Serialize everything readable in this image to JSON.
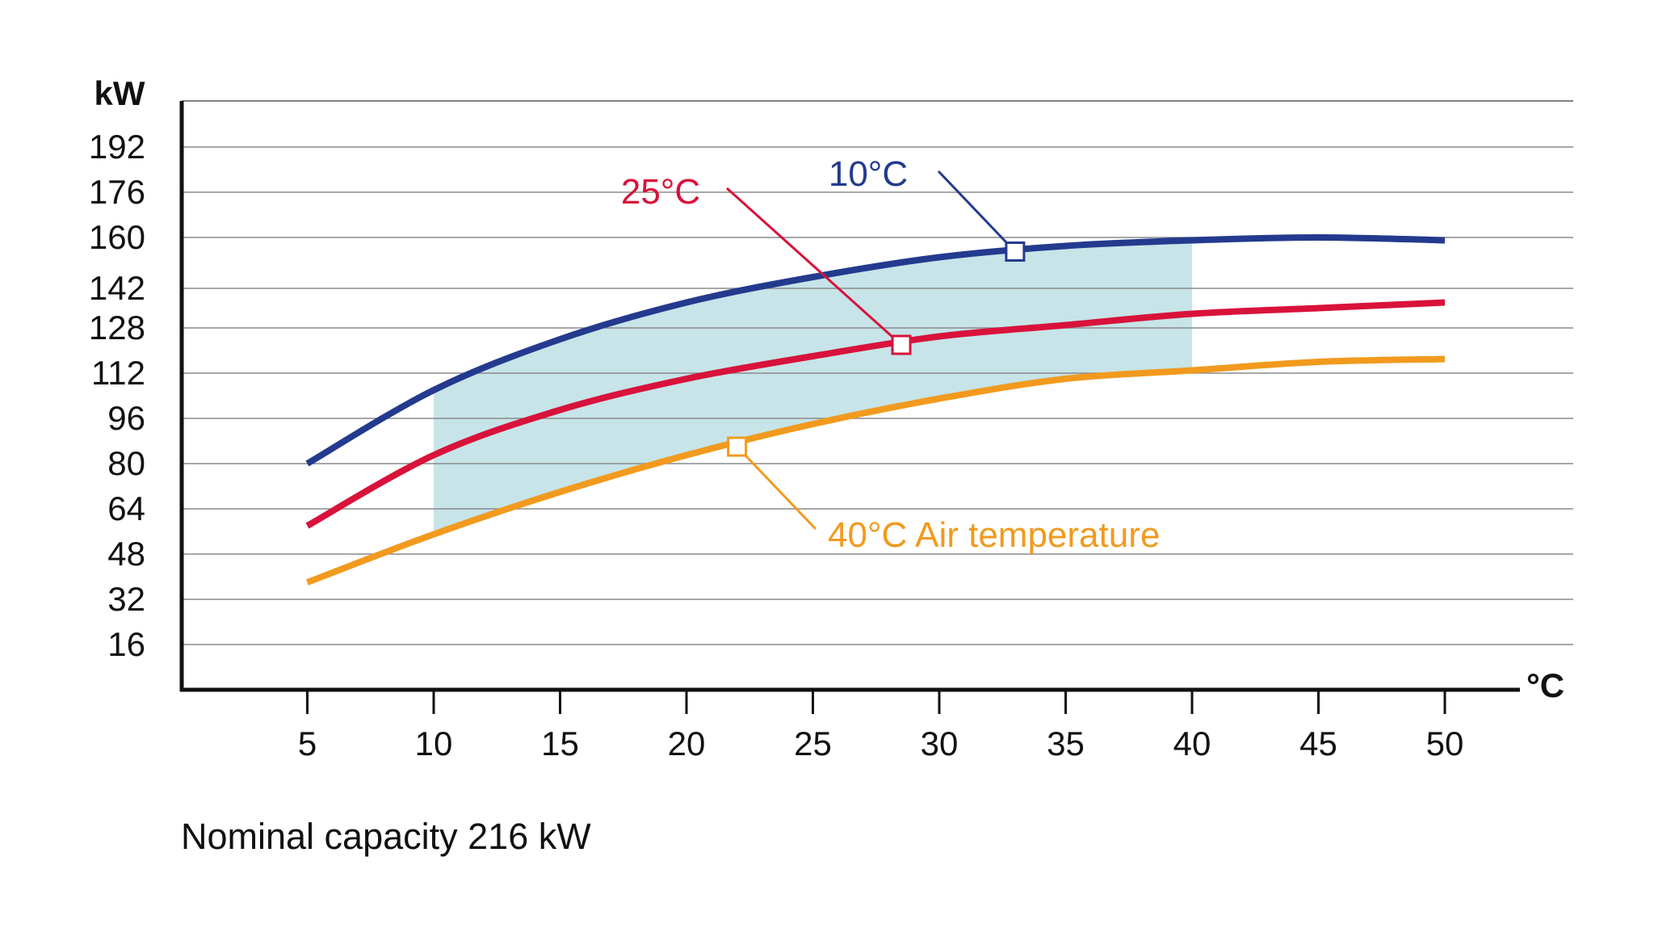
{
  "chart_data": {
    "type": "line",
    "title": "",
    "xlabel": "°C",
    "ylabel": "kW",
    "x_ticks": [
      5,
      10,
      15,
      20,
      25,
      30,
      35,
      40,
      45,
      50
    ],
    "y_ticks": [
      16,
      32,
      48,
      64,
      80,
      96,
      112,
      128,
      142,
      160,
      176,
      192
    ],
    "xlim": [
      0,
      55
    ],
    "ylim": [
      0,
      208
    ],
    "grid": "horizontal",
    "shaded_region": {
      "x_range": [
        10,
        40
      ],
      "color": "#c7e4e8"
    },
    "series": [
      {
        "name": "10°C",
        "color": "#233a8e",
        "x": [
          5,
          10,
          15,
          20,
          25,
          30,
          35,
          40,
          45,
          50
        ],
        "y": [
          80,
          106,
          124,
          137,
          146,
          153,
          157,
          159,
          160,
          159
        ],
        "marker": {
          "x": 33,
          "y": 155
        },
        "callout_text": "10°C"
      },
      {
        "name": "25°C",
        "color": "#d8123b",
        "x": [
          5,
          10,
          15,
          20,
          25,
          30,
          35,
          40,
          45,
          50
        ],
        "y": [
          58,
          83,
          99,
          110,
          118,
          125,
          129,
          133,
          135,
          137
        ],
        "marker": {
          "x": 28.5,
          "y": 122
        },
        "callout_text": "25°C"
      },
      {
        "name": "40°C Air temperature",
        "color": "#f29a1e",
        "x": [
          5,
          10,
          15,
          20,
          25,
          30,
          35,
          40,
          45,
          50
        ],
        "y": [
          38,
          55,
          70,
          83,
          94,
          103,
          110,
          113,
          116,
          117
        ],
        "marker": {
          "x": 22,
          "y": 86
        },
        "callout_text": "40°C Air temperature"
      }
    ]
  },
  "footnote": "Nominal capacity 216 kW"
}
